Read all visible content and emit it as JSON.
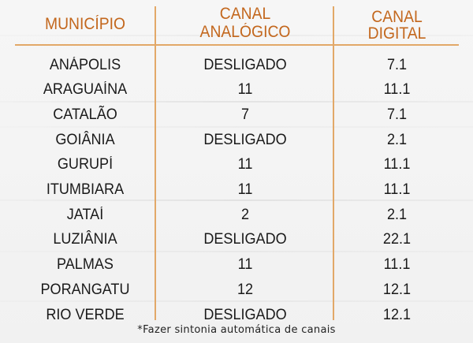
{
  "table": {
    "headers": {
      "municipio": "MUNICÍPIO",
      "analogico_line1": "CANAL",
      "analogico_line2": "ANALÓGICO",
      "digital_line1": "CANAL",
      "digital_line2": "DIGITAL"
    },
    "rows": [
      {
        "municipio": "ANÁPOLIS",
        "analogico": "DESLIGADO",
        "digital": "7.1"
      },
      {
        "municipio": "ARAGUAÍNA",
        "analogico": "11",
        "digital": "11.1"
      },
      {
        "municipio": "CATALÃO",
        "analogico": "7",
        "digital": "7.1"
      },
      {
        "municipio": "GOIÂNIA",
        "analogico": "DESLIGADO",
        "digital": "2.1"
      },
      {
        "municipio": "GURUPÍ",
        "analogico": "11",
        "digital": "11.1"
      },
      {
        "municipio": "ITUMBIARA",
        "analogico": "11",
        "digital": "11.1"
      },
      {
        "municipio": "JATAÍ",
        "analogico": "2",
        "digital": "2.1"
      },
      {
        "municipio": "LUZIÂNIA",
        "analogico": "DESLIGADO",
        "digital": "22.1"
      },
      {
        "municipio": "PALMAS",
        "analogico": "11",
        "digital": "11.1"
      },
      {
        "municipio": "PORANGATU",
        "analogico": "12",
        "digital": "12.1"
      },
      {
        "municipio": "RIO VERDE",
        "analogico": "DESLIGADO",
        "digital": "12.1"
      }
    ]
  },
  "footnote": "*Fazer sintonia automática de canais",
  "colors": {
    "header_text": "#c3671d",
    "rule_lines": "#e2a868",
    "body_text": "#1a1a1a",
    "background": "#f3f3f3"
  }
}
